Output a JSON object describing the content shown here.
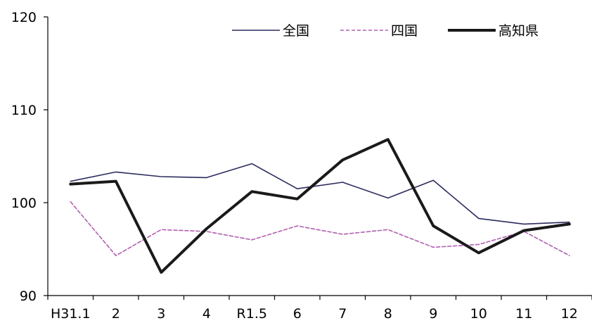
{
  "chart_data": {
    "type": "line",
    "title": "",
    "xlabel": "",
    "ylabel": "",
    "categories": [
      "H31.1",
      "2",
      "3",
      "4",
      "R1.5",
      "6",
      "7",
      "8",
      "9",
      "10",
      "11",
      "12"
    ],
    "ylim": [
      90,
      120
    ],
    "yticks": [
      90,
      100,
      110,
      120
    ],
    "grid": false,
    "legend_position": "top-right",
    "series": [
      {
        "name": "全国",
        "color": "#2b2b5e",
        "style": "solid",
        "weight": "thin",
        "values": [
          102.3,
          103.3,
          102.8,
          102.7,
          104.2,
          101.5,
          102.2,
          100.5,
          102.4,
          98.3,
          97.7,
          97.9
        ]
      },
      {
        "name": "四国",
        "color": "#b060b0",
        "style": "dashed",
        "weight": "thin",
        "values": [
          100.1,
          94.3,
          97.1,
          96.9,
          96.0,
          97.5,
          96.6,
          97.1,
          95.2,
          95.5,
          96.9,
          94.3
        ]
      },
      {
        "name": "高知県",
        "color": "#1a1a1a",
        "style": "solid",
        "weight": "thick",
        "values": [
          102.0,
          102.3,
          92.5,
          97.2,
          101.2,
          100.4,
          104.6,
          106.8,
          97.5,
          94.6,
          97.0,
          97.7
        ]
      }
    ]
  }
}
